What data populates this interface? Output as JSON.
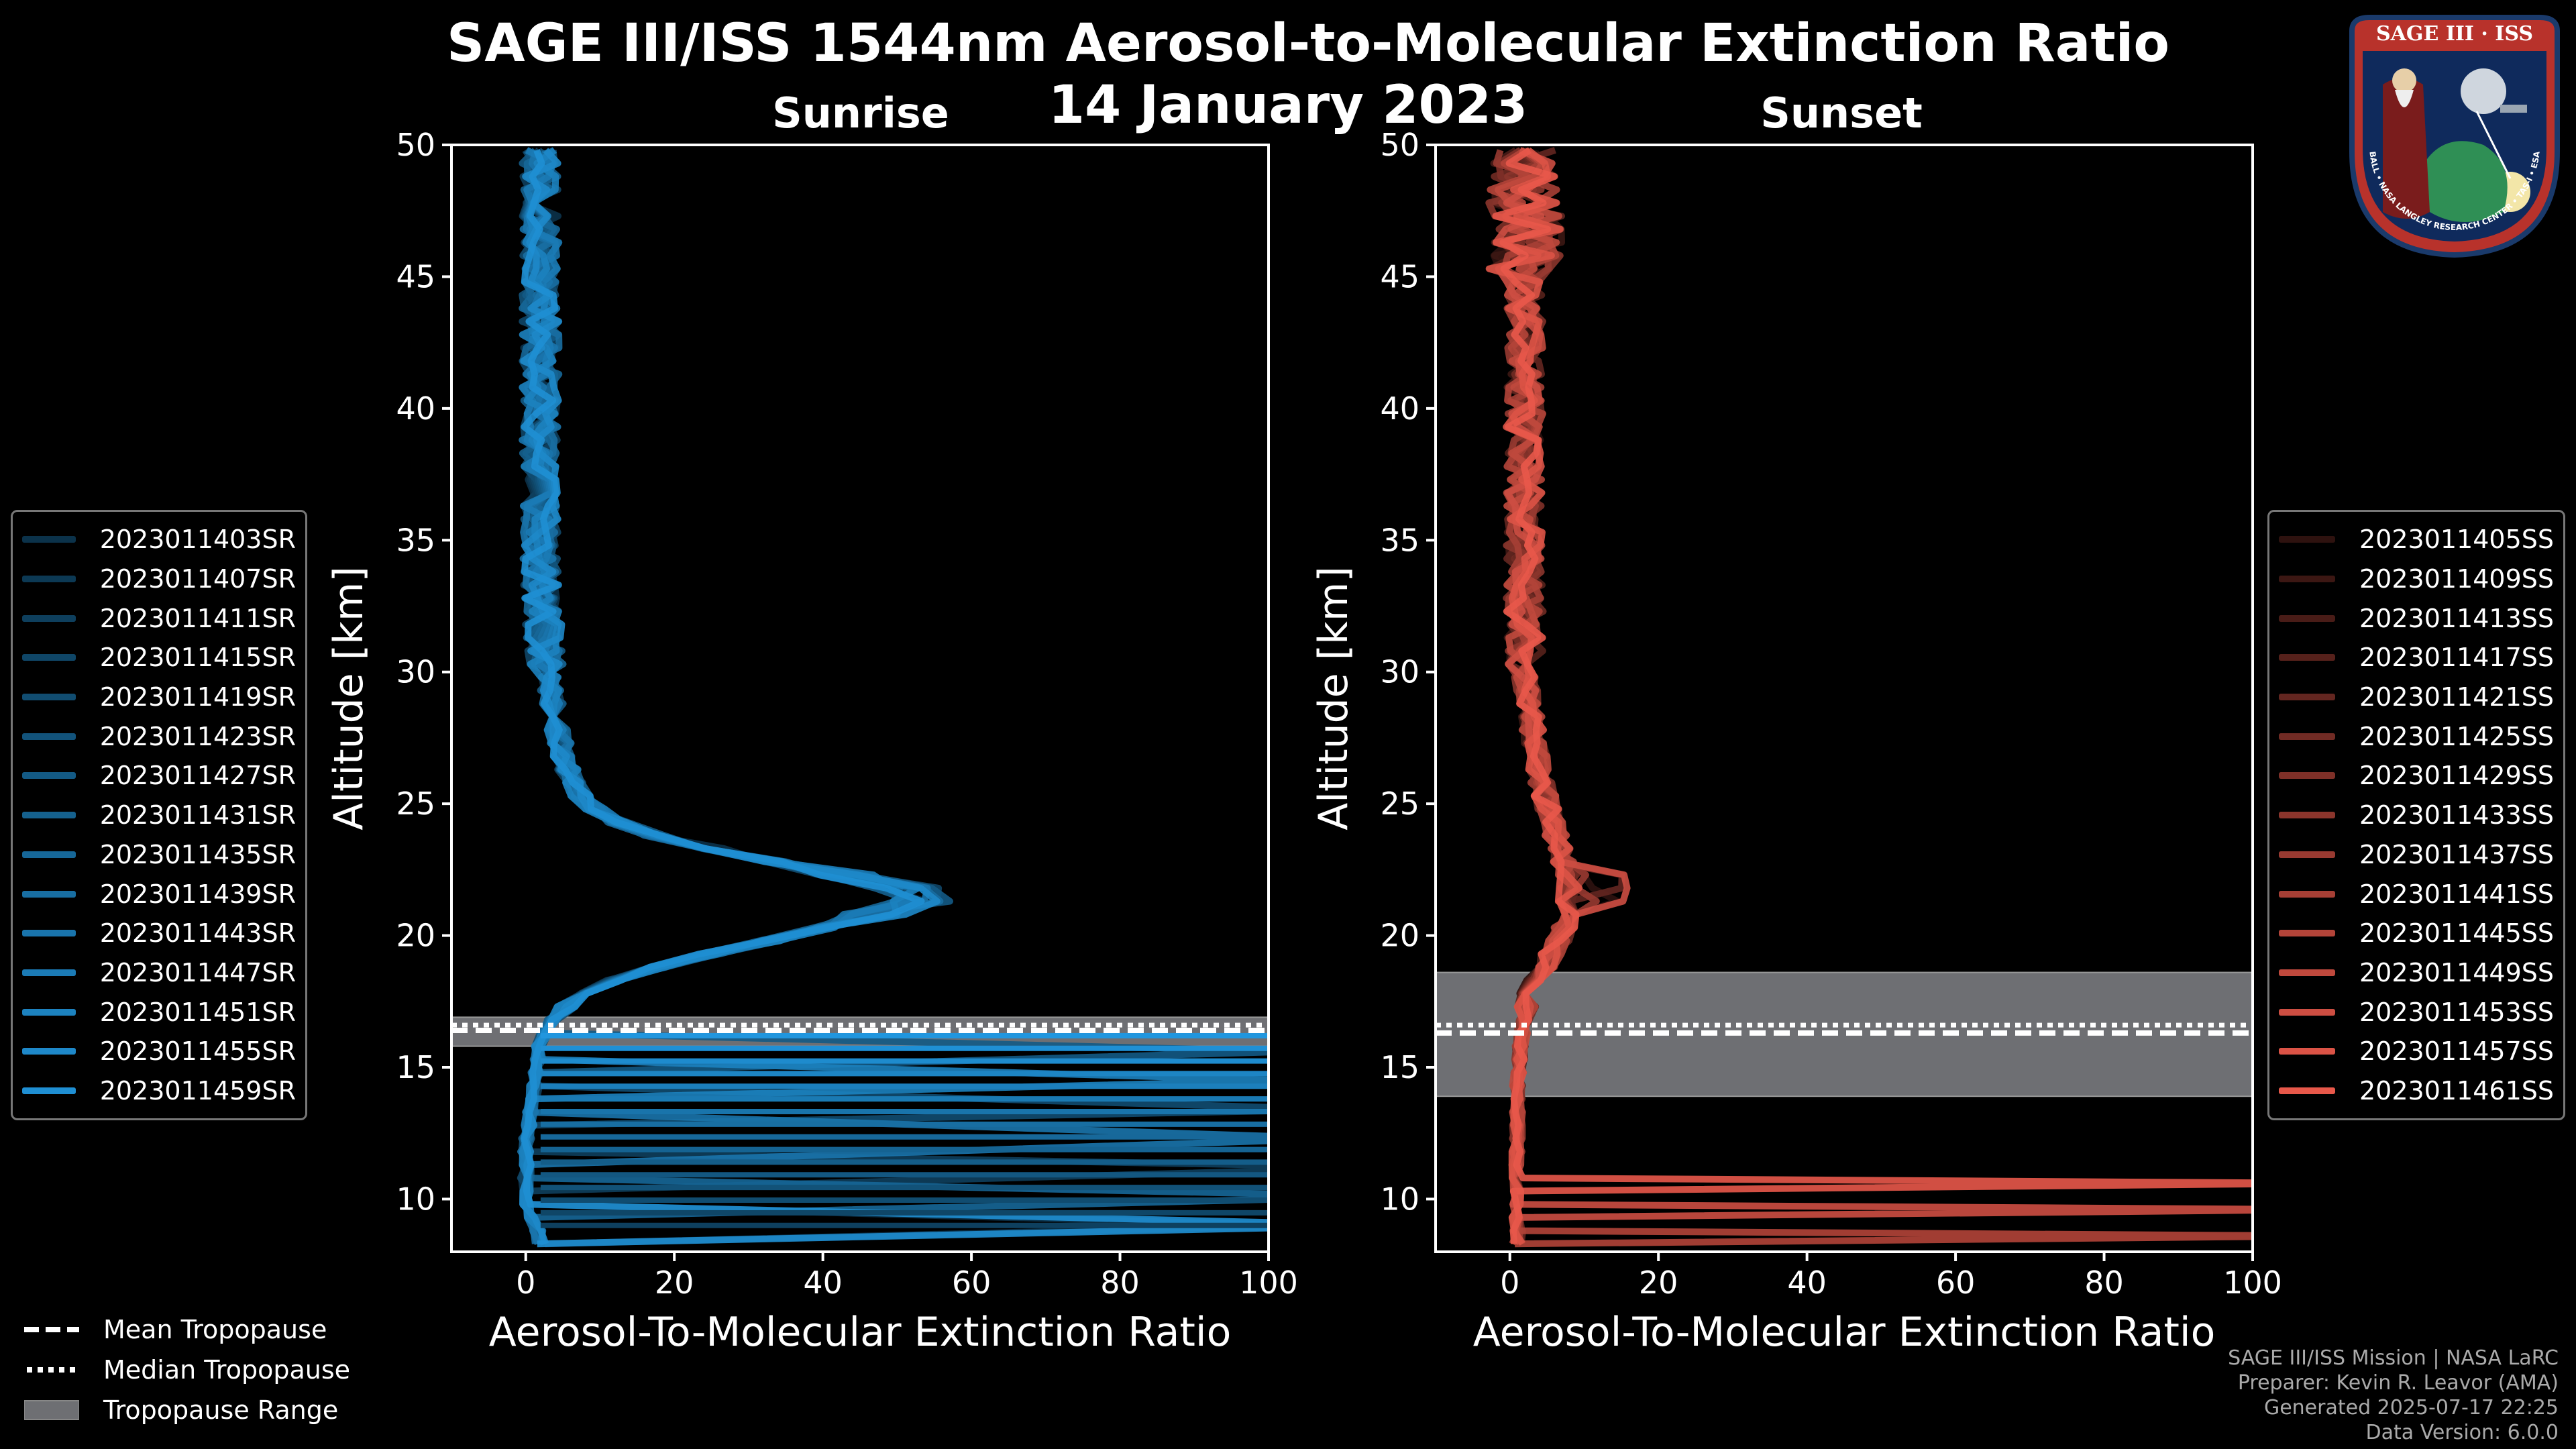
{
  "title_line1": "SAGE III/ISS 1544nm Aerosol-to-Molecular Extinction Ratio",
  "title_line2": "14 January 2023",
  "colors": {
    "sunrise": "#1f8fd3",
    "sunset": "#e8584a",
    "range": "#6e6f73"
  },
  "chart_data": [
    {
      "type": "line",
      "panel": "Sunrise",
      "title": "Sunrise",
      "xlabel": "Aerosol-To-Molecular Extinction Ratio",
      "ylabel": "Altitude [km]",
      "xlim": [
        -10,
        100
      ],
      "ylim": [
        8,
        50
      ],
      "xticks": [
        0,
        20,
        40,
        60,
        80,
        100
      ],
      "yticks": [
        10,
        15,
        20,
        25,
        30,
        35,
        40,
        45,
        50
      ],
      "tropopause": {
        "mean": 16.4,
        "median": 16.6,
        "range": [
          15.8,
          16.9
        ]
      },
      "series_names": [
        "2023011403SR",
        "2023011407SR",
        "2023011411SR",
        "2023011415SR",
        "2023011419SR",
        "2023011423SR",
        "2023011427SR",
        "2023011431SR",
        "2023011435SR",
        "2023011439SR",
        "2023011443SR",
        "2023011447SR",
        "2023011451SR",
        "2023011455SR",
        "2023011459SR"
      ],
      "profile": [
        [
          8.5,
          2
        ],
        [
          10,
          0
        ],
        [
          12,
          0
        ],
        [
          14,
          1
        ],
        [
          16,
          2
        ],
        [
          17,
          4
        ],
        [
          18,
          9
        ],
        [
          19,
          20
        ],
        [
          20,
          36
        ],
        [
          21,
          50
        ],
        [
          21.6,
          55
        ],
        [
          22,
          48
        ],
        [
          23,
          30
        ],
        [
          24,
          14
        ],
        [
          25,
          8
        ],
        [
          26,
          6
        ],
        [
          28,
          4
        ],
        [
          30,
          3
        ],
        [
          33,
          2
        ],
        [
          36,
          2
        ],
        [
          40,
          2
        ],
        [
          44,
          2
        ],
        [
          48,
          2
        ],
        [
          50,
          2
        ]
      ]
    },
    {
      "type": "line",
      "panel": "Sunset",
      "title": "Sunset",
      "xlabel": "Aerosol-To-Molecular Extinction Ratio",
      "ylabel": "Altitude [km]",
      "xlim": [
        -10,
        100
      ],
      "ylim": [
        8,
        50
      ],
      "xticks": [
        0,
        20,
        40,
        60,
        80,
        100
      ],
      "yticks": [
        10,
        15,
        20,
        25,
        30,
        35,
        40,
        45,
        50
      ],
      "tropopause": {
        "mean": 16.3,
        "median": 16.6,
        "range": [
          13.9,
          18.6
        ]
      },
      "series_names": [
        "2023011405SS",
        "2023011409SS",
        "2023011413SS",
        "2023011417SS",
        "2023011421SS",
        "2023011425SS",
        "2023011429SS",
        "2023011433SS",
        "2023011437SS",
        "2023011441SS",
        "2023011445SS",
        "2023011449SS",
        "2023011453SS",
        "2023011457SS",
        "2023011461SS"
      ],
      "profile": [
        [
          8.3,
          1
        ],
        [
          10,
          1
        ],
        [
          12,
          1
        ],
        [
          14,
          1
        ],
        [
          16,
          1.5
        ],
        [
          17,
          2
        ],
        [
          18,
          3
        ],
        [
          19,
          5
        ],
        [
          20,
          7
        ],
        [
          21,
          8
        ],
        [
          22,
          8
        ],
        [
          23,
          7
        ],
        [
          24,
          6
        ],
        [
          25,
          5
        ],
        [
          26,
          4
        ],
        [
          28,
          3
        ],
        [
          30,
          2
        ],
        [
          33,
          2
        ],
        [
          36,
          2
        ],
        [
          40,
          2
        ],
        [
          44,
          2
        ],
        [
          48,
          2
        ],
        [
          50,
          2
        ]
      ]
    }
  ],
  "legend_tropopause": [
    "Mean Tropopause",
    "Median Tropopause",
    "Tropopause Range"
  ],
  "credits": [
    "SAGE III/ISS Mission | NASA LaRC",
    "Preparer: Kevin R. Leavor (AMA)",
    "Generated 2025-07-17 22:25",
    "Data Version: 6.0.0"
  ],
  "logo": {
    "top_text": "SAGE III · ISS",
    "ring_text": "BALL • NASA LANGLEY RESEARCH CENTER • TAS-I • ESA"
  }
}
